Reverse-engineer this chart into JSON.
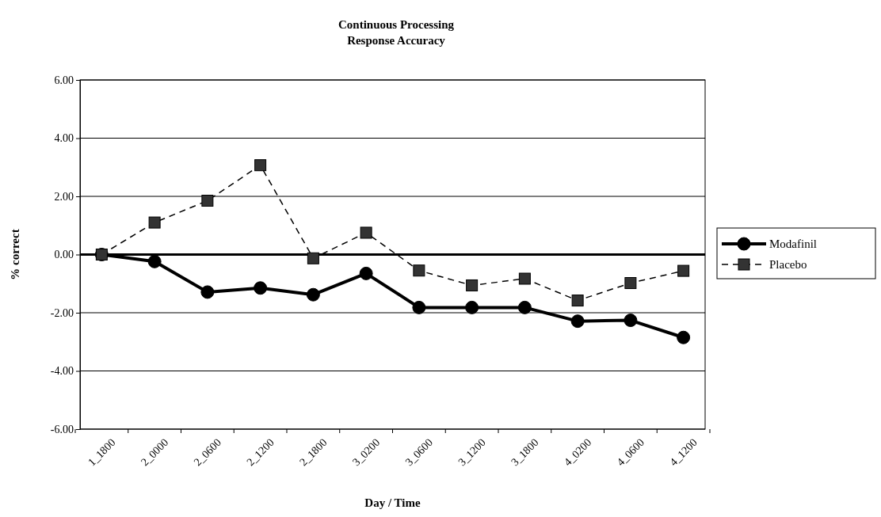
{
  "chart_data": {
    "type": "line",
    "title": "Continuous Processing",
    "subtitle": "Response Accuracy",
    "xlabel": "Day / Time",
    "ylabel": "% correct",
    "categories": [
      "1_1800",
      "2_0000",
      "2_0600",
      "2_1200",
      "2_1800",
      "3_0200",
      "3_0600",
      "3_1200",
      "3_1800",
      "4_0200",
      "4_0600",
      "4_1200"
    ],
    "series": [
      {
        "name": "Modafinil",
        "color": "#000000",
        "marker": "circle",
        "line_style": "solid",
        "values": [
          0,
          -0.24,
          -1.29,
          -1.15,
          -1.38,
          -0.65,
          -1.82,
          -1.82,
          -1.82,
          -2.29,
          -2.26,
          -2.85
        ]
      },
      {
        "name": "Placebo",
        "color": "#333333",
        "marker": "square",
        "line_style": "dashed",
        "values": [
          0,
          1.1,
          1.85,
          3.07,
          -0.13,
          0.75,
          -0.55,
          -1.06,
          -0.83,
          -1.58,
          -0.98,
          -0.56
        ]
      }
    ],
    "ylim": [
      -6,
      6
    ],
    "yticks": [
      {
        "value": -6,
        "label": "-6.00"
      },
      {
        "value": -4,
        "label": "-4.00"
      },
      {
        "value": -2,
        "label": "-2.00"
      },
      {
        "value": 0,
        "label": "0.00"
      },
      {
        "value": 2,
        "label": "2.00"
      },
      {
        "value": 4,
        "label": "4.00"
      },
      {
        "value": 6,
        "label": "6.00"
      }
    ],
    "grid": "y",
    "legend": "right"
  }
}
